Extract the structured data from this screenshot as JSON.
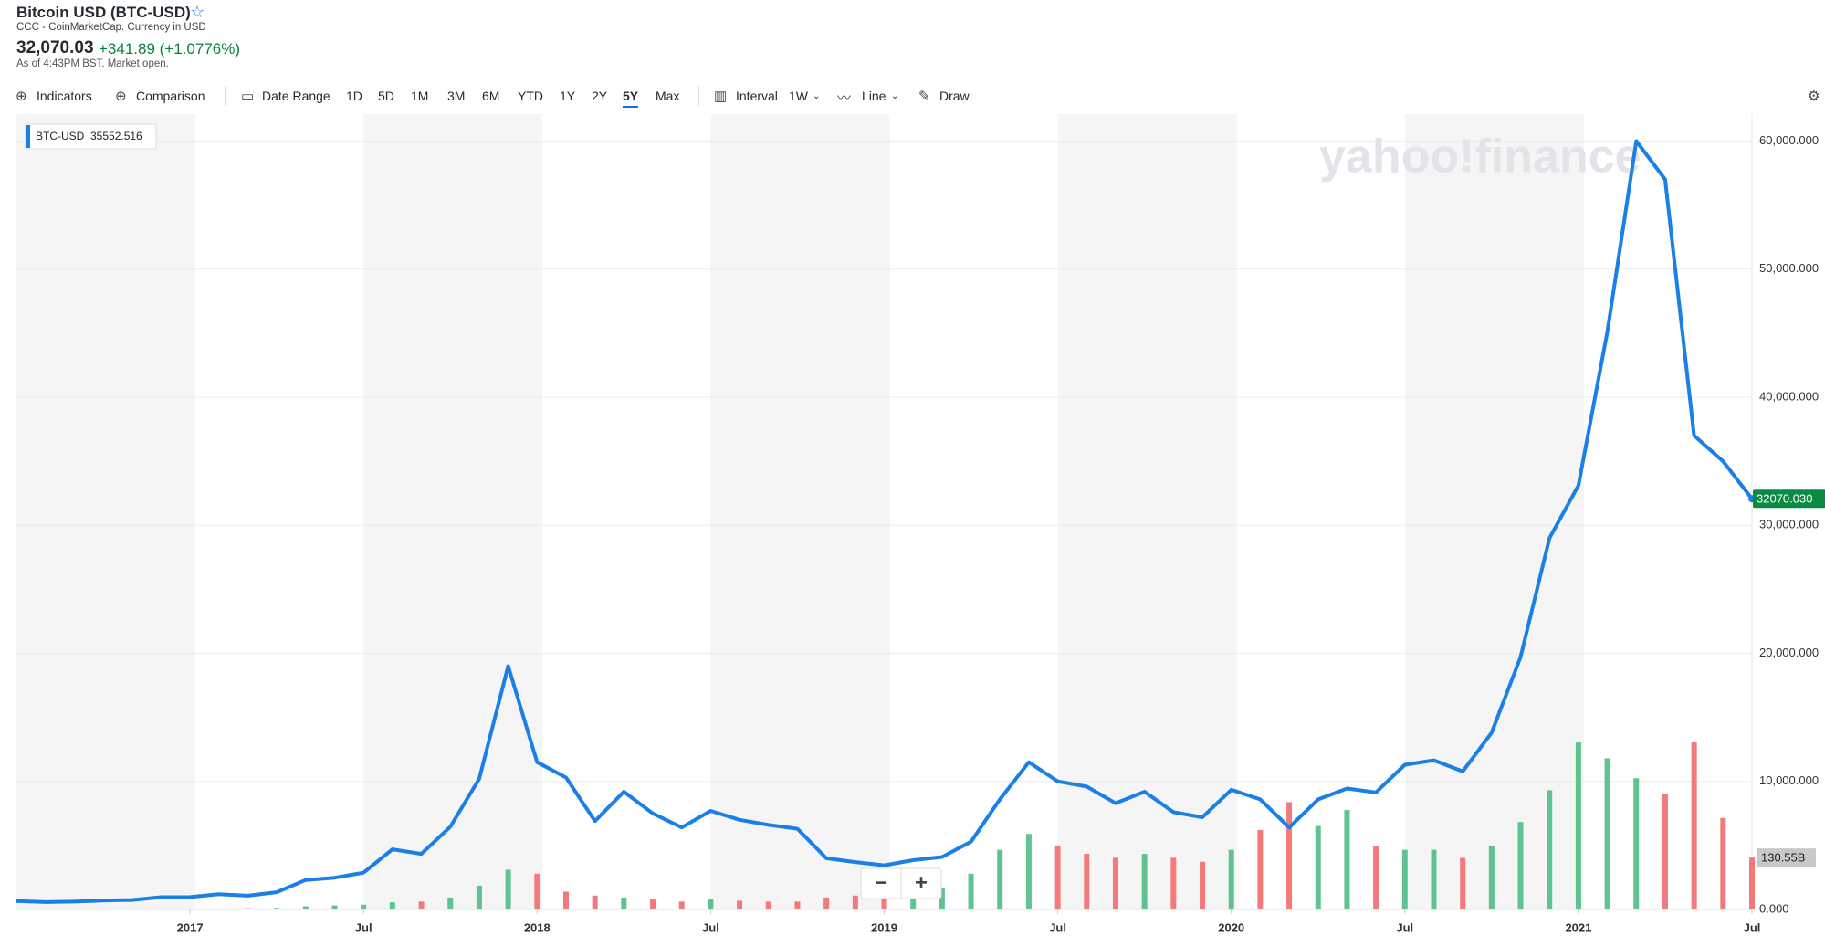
{
  "header": {
    "title": "Bitcoin USD (BTC-USD)",
    "subtitle": "CCC - CoinMarketCap. Currency in USD",
    "price": "32,070.03",
    "change": "+341.89 (+1.0776%)",
    "as_of": "As of 4:43PM BST. Market open."
  },
  "toolbar": {
    "indicators": "Indicators",
    "comparison": "Comparison",
    "date_range": "Date Range",
    "ranges": [
      "1D",
      "5D",
      "1M",
      "3M",
      "6M",
      "YTD",
      "1Y",
      "2Y",
      "5Y",
      "Max"
    ],
    "selected": "5Y",
    "interval": "Interval",
    "interval_value": "1W",
    "line": "Line",
    "draw": "Draw"
  },
  "zoom": [
    "−",
    "+"
  ],
  "chart_data": {
    "type": "line",
    "watermark": "yahoo!finance",
    "x": [
      "2016-07",
      "2016-08",
      "2016-09",
      "2016-10",
      "2016-11",
      "2016-12",
      "2017-01",
      "2017-02",
      "2017-03",
      "2017-04",
      "2017-05",
      "2017-06",
      "2017-07",
      "2017-08",
      "2017-09",
      "2017-10",
      "2017-11",
      "2017-12",
      "2018-01",
      "2018-02",
      "2018-03",
      "2018-04",
      "2018-05",
      "2018-06",
      "2018-07",
      "2018-08",
      "2018-09",
      "2018-10",
      "2018-11",
      "2018-12",
      "2019-01",
      "2019-02",
      "2019-03",
      "2019-04",
      "2019-05",
      "2019-06",
      "2019-07",
      "2019-08",
      "2019-09",
      "2019-10",
      "2019-11",
      "2019-12",
      "2020-01",
      "2020-02",
      "2020-03",
      "2020-04",
      "2020-05",
      "2020-06",
      "2020-07",
      "2020-08",
      "2020-09",
      "2020-10",
      "2020-11",
      "2020-12",
      "2021-01",
      "2021-02",
      "2021-03",
      "2021-04",
      "2021-05",
      "2021-06",
      "2021-07"
    ],
    "series": [
      {
        "name": "BTC-USD",
        "color": "#1a7fe6",
        "values": [
          655,
          575,
          610,
          700,
          740,
          960,
          970,
          1190,
          1080,
          1350,
          2300,
          2480,
          2870,
          4700,
          4340,
          6470,
          10200,
          19000,
          11500,
          10300,
          6900,
          9200,
          7500,
          6400,
          7700,
          7000,
          6600,
          6300,
          4000,
          3700,
          3450,
          3850,
          4100,
          5300,
          8600,
          11500,
          10000,
          9600,
          8300,
          9200,
          7600,
          7200,
          9350,
          8600,
          6400,
          8600,
          9450,
          9140,
          11300,
          11650,
          10780,
          13800,
          19700,
          29000,
          33100,
          45100,
          60000,
          57000,
          37000,
          35000,
          32070.03
        ]
      }
    ],
    "volume": {
      "values": [
        1,
        1,
        1,
        1,
        1,
        1,
        2,
        2,
        3,
        4,
        8,
        10,
        12,
        18,
        20,
        30,
        60,
        100,
        90,
        45,
        35,
        30,
        25,
        20,
        25,
        22,
        20,
        20,
        30,
        35,
        40,
        45,
        55,
        90,
        150,
        190,
        160,
        140,
        130,
        140,
        130,
        120,
        150,
        200,
        270,
        210,
        250,
        160,
        150,
        150,
        130,
        160,
        220,
        300,
        420,
        380,
        330,
        290,
        420,
        230,
        130.55
      ],
      "up_color": "#5fc38f",
      "down_color": "#f27a7a"
    },
    "volume_label": {
      "value": 130.55,
      "label": "130.55B"
    },
    "hover_value": 35552.516,
    "current_label": {
      "value": 32070.03,
      "label": "32070.030"
    },
    "xlim": [
      "2016-07",
      "2021-07"
    ],
    "xticks": [
      {
        "value": "2017-01",
        "label": "2017"
      },
      {
        "value": "2017-07",
        "label": "Jul"
      },
      {
        "value": "2018-01",
        "label": "2018"
      },
      {
        "value": "2018-07",
        "label": "Jul"
      },
      {
        "value": "2019-01",
        "label": "2019"
      },
      {
        "value": "2019-07",
        "label": "Jul"
      },
      {
        "value": "2020-01",
        "label": "2020"
      },
      {
        "value": "2020-07",
        "label": "Jul"
      },
      {
        "value": "2021-01",
        "label": "2021"
      },
      {
        "value": "2021-07",
        "label": "Jul"
      }
    ],
    "ylim": [
      0,
      62100
    ],
    "y2lim": [
      0,
      2000
    ],
    "yticks": [
      {
        "value": 0,
        "label": "0.000"
      },
      {
        "value": 10000,
        "label": "10,000.000"
      },
      {
        "value": 20000,
        "label": "20,000.000"
      },
      {
        "value": 30000,
        "label": "30,000.000"
      },
      {
        "value": 40000,
        "label": "40,000.000"
      },
      {
        "value": 50000,
        "label": "50,000.000"
      },
      {
        "value": 60000,
        "label": "60,000.000"
      }
    ],
    "grid": true
  }
}
